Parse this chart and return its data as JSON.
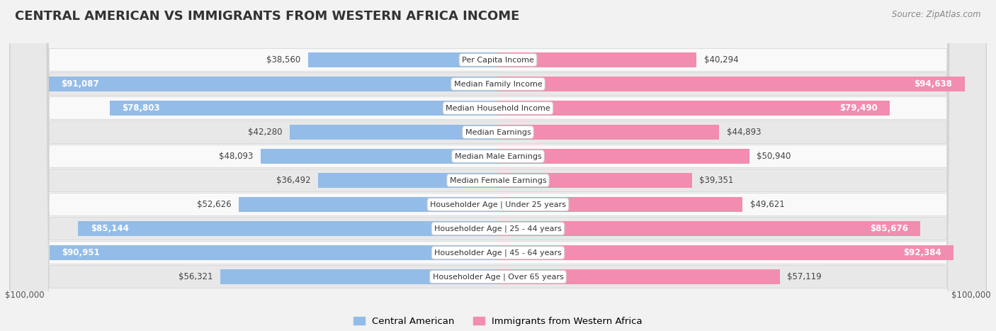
{
  "title": "CENTRAL AMERICAN VS IMMIGRANTS FROM WESTERN AFRICA INCOME",
  "source": "Source: ZipAtlas.com",
  "categories": [
    "Per Capita Income",
    "Median Family Income",
    "Median Household Income",
    "Median Earnings",
    "Median Male Earnings",
    "Median Female Earnings",
    "Householder Age | Under 25 years",
    "Householder Age | 25 - 44 years",
    "Householder Age | 45 - 64 years",
    "Householder Age | Over 65 years"
  ],
  "central_american": [
    38560,
    91087,
    78803,
    42280,
    48093,
    36492,
    52626,
    85144,
    90951,
    56321
  ],
  "western_africa": [
    40294,
    94638,
    79490,
    44893,
    50940,
    39351,
    49621,
    85676,
    92384,
    57119
  ],
  "color_central": "#93bce8",
  "color_western": "#f28cb0",
  "color_central_dark": "#5b9bd5",
  "color_western_dark": "#e8558a",
  "label_central": "Central American",
  "label_western": "Immigrants from Western Africa",
  "xlim": 100000,
  "background_color": "#f2f2f2",
  "row_bg_light": "#f9f9f9",
  "row_bg_dark": "#e8e8e8",
  "title_fontsize": 13,
  "label_fontsize": 9,
  "value_fontsize": 8.5,
  "ca_threshold": 68000,
  "wa_threshold": 68000
}
